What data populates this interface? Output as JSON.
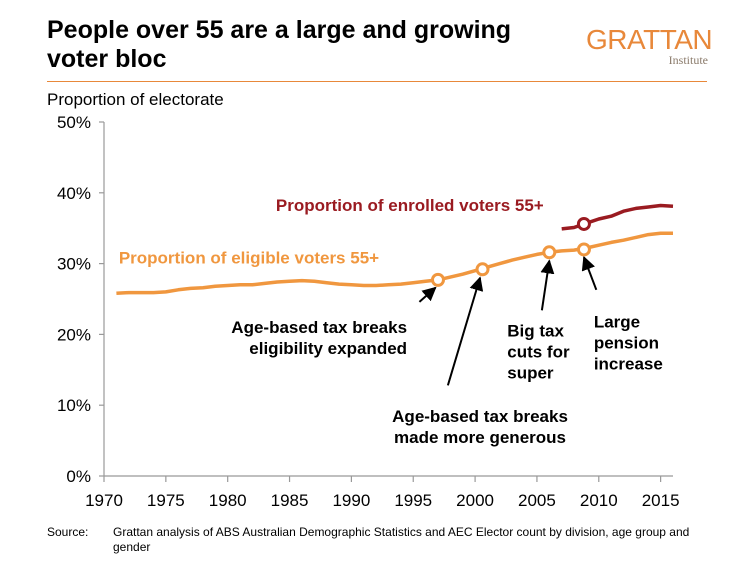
{
  "header": {
    "title": "People over 55 are a large and growing voter bloc",
    "logo_main": "GRATTAN",
    "logo_sub": "Institute"
  },
  "footer": {
    "source_label": "Source:",
    "source_text": "Grattan analysis of ABS Australian Demographic Statistics and AEC Elector count by division, age group and gender"
  },
  "colors": {
    "eligible": "#f0973f",
    "enrolled": "#9a1b21",
    "axis": "#999999",
    "text": "#000000"
  },
  "chart_data": {
    "type": "line",
    "title": "People over 55 are a large and growing voter bloc",
    "ylabel": "Proportion of electorate",
    "xlabel": "",
    "xlim": [
      1970,
      2016
    ],
    "ylim": [
      0,
      50
    ],
    "x_ticks": [
      1970,
      1975,
      1980,
      1985,
      1990,
      1995,
      2000,
      2005,
      2010,
      2015
    ],
    "y_ticks": [
      0,
      10,
      20,
      30,
      40,
      50
    ],
    "y_tick_labels": [
      "0%",
      "10%",
      "20%",
      "30%",
      "40%",
      "50%"
    ],
    "grid": false,
    "series": [
      {
        "name": "Proportion of eligible voters 55+",
        "color": "#f0973f",
        "points": [
          [
            1971,
            25.8
          ],
          [
            1972,
            25.9
          ],
          [
            1973,
            25.9
          ],
          [
            1974,
            25.9
          ],
          [
            1975,
            26.0
          ],
          [
            1976,
            26.3
          ],
          [
            1977,
            26.5
          ],
          [
            1978,
            26.6
          ],
          [
            1979,
            26.8
          ],
          [
            1980,
            26.9
          ],
          [
            1981,
            27.0
          ],
          [
            1982,
            27.0
          ],
          [
            1983,
            27.2
          ],
          [
            1984,
            27.4
          ],
          [
            1985,
            27.5
          ],
          [
            1986,
            27.6
          ],
          [
            1987,
            27.5
          ],
          [
            1988,
            27.3
          ],
          [
            1989,
            27.1
          ],
          [
            1990,
            27.0
          ],
          [
            1991,
            26.9
          ],
          [
            1992,
            26.9
          ],
          [
            1993,
            27.0
          ],
          [
            1994,
            27.1
          ],
          [
            1995,
            27.3
          ],
          [
            1996,
            27.5
          ],
          [
            1997,
            27.7
          ],
          [
            1998,
            28.1
          ],
          [
            1999,
            28.5
          ],
          [
            2000,
            29.0
          ],
          [
            2001,
            29.5
          ],
          [
            2002,
            30.0
          ],
          [
            2003,
            30.5
          ],
          [
            2004,
            30.9
          ],
          [
            2005,
            31.3
          ],
          [
            2006,
            31.6
          ],
          [
            2007,
            31.8
          ],
          [
            2008,
            31.9
          ],
          [
            2009,
            32.2
          ],
          [
            2010,
            32.6
          ],
          [
            2011,
            33.0
          ],
          [
            2012,
            33.3
          ],
          [
            2013,
            33.7
          ],
          [
            2014,
            34.1
          ],
          [
            2015,
            34.3
          ],
          [
            2016,
            34.3
          ]
        ]
      },
      {
        "name": "Proportion of enrolled voters 55+",
        "color": "#9a1b21",
        "points": [
          [
            2007,
            34.9
          ],
          [
            2008,
            35.1
          ],
          [
            2009,
            35.7
          ],
          [
            2010,
            36.3
          ],
          [
            2011,
            36.7
          ],
          [
            2012,
            37.4
          ],
          [
            2013,
            37.8
          ],
          [
            2014,
            38.0
          ],
          [
            2015,
            38.2
          ],
          [
            2016,
            38.1
          ]
        ]
      }
    ],
    "series_labels": [
      {
        "text": "Proportion of eligible voters 55+",
        "series": 0,
        "x": 1971.2,
        "y": 30.0
      },
      {
        "text": "Proportion of enrolled voters 55+",
        "series": 1,
        "x": 1983.9,
        "y": 37.4
      }
    ],
    "markers": [
      {
        "series": 0,
        "x": 1997,
        "y": 27.7
      },
      {
        "series": 0,
        "x": 2000.6,
        "y": 29.2
      },
      {
        "series": 0,
        "x": 2006,
        "y": 31.6
      },
      {
        "series": 0,
        "x": 2008.8,
        "y": 32.0
      },
      {
        "series": 1,
        "x": 2008.8,
        "y": 35.6
      }
    ],
    "annotations": [
      {
        "lines": [
          "Age-based tax breaks",
          "eligibility expanded"
        ],
        "align": "right",
        "text_x": 1994.5,
        "text_y": 20.2,
        "arrow_from": [
          1995.5,
          24.6
        ],
        "arrow_to": [
          1996.8,
          26.6
        ]
      },
      {
        "lines": [
          "Age-based tax breaks",
          "made more generous"
        ],
        "align": "middle",
        "text_x": 2000.4,
        "text_y": 7.6,
        "arrow_from": [
          1997.8,
          12.8
        ],
        "arrow_to": [
          2000.4,
          28.0
        ]
      },
      {
        "lines": [
          "Big tax",
          "cuts for",
          "super"
        ],
        "align": "left",
        "text_x": 2002.6,
        "text_y": 19.7,
        "arrow_from": [
          2005.4,
          23.4
        ],
        "arrow_to": [
          2006.0,
          30.4
        ]
      },
      {
        "lines": [
          "Large",
          "pension",
          "increase"
        ],
        "align": "left",
        "text_x": 2009.6,
        "text_y": 21.0,
        "arrow_from": [
          2009.8,
          26.3
        ],
        "arrow_to": [
          2008.8,
          30.9
        ]
      }
    ]
  }
}
